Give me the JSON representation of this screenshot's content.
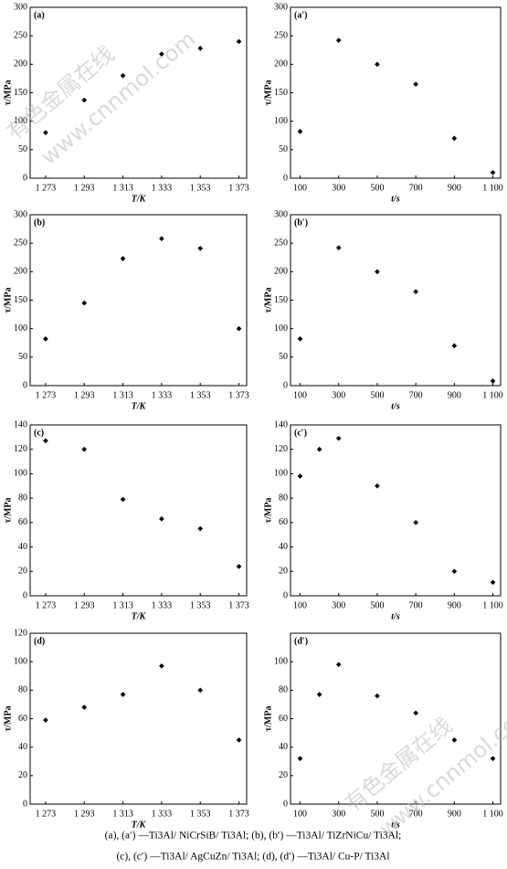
{
  "chart_data": [
    {
      "type": "scatter",
      "title": "(a)",
      "x_label": "T/K",
      "y_label": "τ/MPa",
      "color": "#000000",
      "x": [
        1273,
        1293,
        1313,
        1333,
        1353,
        1373
      ],
      "values": [
        80,
        137,
        180,
        218,
        228,
        240
      ],
      "xlim": [
        1265,
        1377
      ],
      "ylim": [
        0,
        300
      ],
      "xticks": [
        {
          "value": 1273,
          "label": "1 273"
        },
        {
          "value": 1293,
          "label": "1 293"
        },
        {
          "value": 1313,
          "label": "1 313"
        },
        {
          "value": 1333,
          "label": "1 333"
        },
        {
          "value": 1353,
          "label": "1 353"
        },
        {
          "value": 1373,
          "label": "1 373"
        }
      ],
      "yticks": [
        0,
        50,
        100,
        150,
        200,
        250,
        300
      ]
    },
    {
      "type": "scatter",
      "title": "(a′)",
      "x_label": "t/s",
      "y_label": "τ/MPa",
      "color": "#000000",
      "x": [
        100,
        300,
        500,
        700,
        900,
        1100
      ],
      "values": [
        82,
        242,
        200,
        165,
        70,
        10
      ],
      "xlim": [
        50,
        1140
      ],
      "ylim": [
        0,
        300
      ],
      "xticks": [
        100,
        300,
        500,
        700,
        900,
        {
          "value": 1100,
          "label": "1 100"
        }
      ],
      "yticks": [
        0,
        50,
        100,
        150,
        200,
        250,
        300
      ]
    },
    {
      "type": "scatter",
      "title": "(b)",
      "x_label": "T/K",
      "y_label": "τ/MPa",
      "color": "#000000",
      "x": [
        1273,
        1293,
        1313,
        1333,
        1353,
        1373
      ],
      "values": [
        82,
        145,
        223,
        258,
        241,
        100
      ],
      "xlim": [
        1265,
        1377
      ],
      "ylim": [
        0,
        300
      ],
      "xticks": [
        {
          "value": 1273,
          "label": "1 273"
        },
        {
          "value": 1293,
          "label": "1 293"
        },
        {
          "value": 1313,
          "label": "1 313"
        },
        {
          "value": 1333,
          "label": "1 333"
        },
        {
          "value": 1353,
          "label": "1 353"
        },
        {
          "value": 1373,
          "label": "1 373"
        }
      ],
      "yticks": [
        0,
        50,
        100,
        150,
        200,
        250,
        300
      ]
    },
    {
      "type": "scatter",
      "title": "(b′)",
      "x_label": "t/s",
      "y_label": "τ/MPa",
      "color": "#000000",
      "x": [
        100,
        300,
        500,
        700,
        900,
        1100
      ],
      "values": [
        82,
        242,
        200,
        165,
        70,
        8
      ],
      "xlim": [
        50,
        1140
      ],
      "ylim": [
        0,
        300
      ],
      "xticks": [
        100,
        300,
        500,
        700,
        900,
        {
          "value": 1100,
          "label": "1 100"
        }
      ],
      "yticks": [
        0,
        50,
        100,
        150,
        200,
        250,
        300
      ]
    },
    {
      "type": "scatter",
      "title": "(c)",
      "x_label": "T/K",
      "y_label": "τ/MPa",
      "color": "#000000",
      "x": [
        1273,
        1293,
        1313,
        1333,
        1353,
        1373
      ],
      "values": [
        127,
        120,
        79,
        63,
        55,
        24
      ],
      "xlim": [
        1265,
        1377
      ],
      "ylim": [
        0,
        140
      ],
      "xticks": [
        {
          "value": 1273,
          "label": "1 273"
        },
        {
          "value": 1293,
          "label": "1 293"
        },
        {
          "value": 1313,
          "label": "1 313"
        },
        {
          "value": 1333,
          "label": "1 333"
        },
        {
          "value": 1353,
          "label": "1 353"
        },
        {
          "value": 1373,
          "label": "1 373"
        }
      ],
      "yticks": [
        0,
        20,
        40,
        60,
        80,
        100,
        120,
        140
      ]
    },
    {
      "type": "scatter",
      "title": "(c′)",
      "x_label": "t/s",
      "y_label": "τ/MPa",
      "color": "#000000",
      "x": [
        100,
        200,
        300,
        500,
        700,
        900,
        1100
      ],
      "values": [
        98,
        120,
        129,
        90,
        60,
        20,
        11
      ],
      "xlim": [
        50,
        1140
      ],
      "ylim": [
        0,
        140
      ],
      "xticks": [
        100,
        300,
        500,
        700,
        900,
        {
          "value": 1100,
          "label": "1 100"
        }
      ],
      "yticks": [
        0,
        20,
        40,
        60,
        80,
        100,
        120,
        140
      ]
    },
    {
      "type": "scatter",
      "title": "(d)",
      "x_label": "T/K",
      "y_label": "τ/MPa",
      "color": "#000000",
      "x": [
        1273,
        1293,
        1313,
        1333,
        1353,
        1373
      ],
      "values": [
        59,
        68,
        77,
        97,
        80,
        45
      ],
      "xlim": [
        1265,
        1377
      ],
      "ylim": [
        0,
        120
      ],
      "xticks": [
        {
          "value": 1273,
          "label": "1 273"
        },
        {
          "value": 1293,
          "label": "1 293"
        },
        {
          "value": 1313,
          "label": "1 313"
        },
        {
          "value": 1333,
          "label": "1 333"
        },
        {
          "value": 1353,
          "label": "1 353"
        },
        {
          "value": 1373,
          "label": "1 373"
        }
      ],
      "yticks": [
        0,
        20,
        40,
        60,
        80,
        100,
        120
      ]
    },
    {
      "type": "scatter",
      "title": "(d′)",
      "x_label": "t/s",
      "y_label": "τ/MPa",
      "color": "#000000",
      "x": [
        100,
        200,
        300,
        500,
        700,
        900,
        1100
      ],
      "values": [
        32,
        77,
        98,
        76,
        64,
        45,
        32
      ],
      "xlim": [
        50,
        1140
      ],
      "ylim": [
        0,
        120
      ],
      "xticks": [
        100,
        300,
        500,
        700,
        900,
        {
          "value": 1100,
          "label": "1 100"
        }
      ],
      "yticks": [
        0,
        20,
        40,
        60,
        80,
        100
      ]
    }
  ],
  "caption": [
    "(a), (a′) —Ti3Al/ NiCrSiB/ Ti3Al; (b), (b′) —Ti3Al/ TiZrNiCu/ Ti3Al;",
    "(c), (c′) —Ti3Al/ AgCuZn/ Ti3Al; (d), (d′) —Ti3Al/ Cu-P/ Ti3Al"
  ],
  "watermark": [
    "有色金属在线",
    "www.cnnmol.com"
  ]
}
